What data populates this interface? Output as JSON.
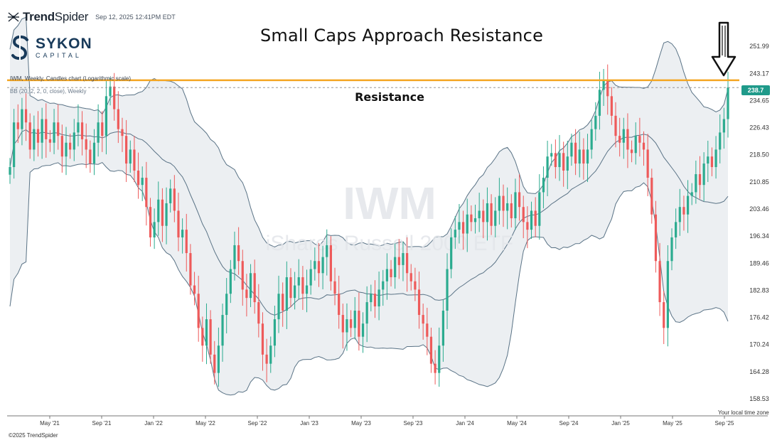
{
  "header": {
    "brand_name_bold": "Trend",
    "brand_name_light": "Spider",
    "timestamp": "Sep 12, 2025 12:41PM EDT",
    "sykon_name": "SYKON",
    "sykon_sub": "CAPITAL"
  },
  "chart_info": {
    "symbol_line": "IWM, Weekly, Candles chart (Logarithmic scale)",
    "bb_line": "BB (20, 2, 2, 0, close), Weekly",
    "footer": "©2025 TrendSpider",
    "tz_label": "Your local time zone"
  },
  "colors": {
    "up": "#2bab8f",
    "down": "#ee5a5a",
    "band_fill": "#eceff2",
    "band_line": "#5a7386",
    "resistance": "#f4a623"
  },
  "chart_data": {
    "type": "candlestick",
    "title": "Small Caps Approach Resistance",
    "watermark_symbol": "IWM",
    "watermark_name": "iShares Russell 2000 ETF",
    "log_scale": true,
    "ylim": [
      155,
      258
    ],
    "yticks": [
      251.99,
      243.17,
      234.65,
      226.43,
      218.5,
      210.85,
      203.46,
      196.34,
      189.46,
      182.83,
      176.42,
      170.24,
      164.28,
      158.53
    ],
    "xticks": [
      "May '21",
      "Sep '21",
      "Jan '22",
      "May '22",
      "Sep '22",
      "Jan '23",
      "May '23",
      "Sep '23",
      "Jan '24",
      "May '24",
      "Sep '24",
      "Jan '25",
      "May '25",
      "Sep '25"
    ],
    "last_price": 238.7,
    "resistance": {
      "value": 241,
      "label": "Resistance"
    },
    "weekly_closes": [
      215,
      228,
      226,
      232,
      228,
      220,
      226,
      222,
      229,
      223,
      222,
      228,
      224,
      218,
      222,
      220,
      225,
      228,
      223,
      220,
      216,
      222,
      228,
      224,
      236,
      239,
      232,
      226,
      224,
      216,
      220,
      214,
      210,
      212,
      204,
      196,
      200,
      206,
      199,
      205,
      209,
      203,
      196,
      198,
      192,
      184,
      182,
      174,
      170,
      176,
      168,
      164,
      170,
      177,
      182,
      188,
      194,
      190,
      183,
      181,
      187,
      180,
      175,
      168,
      166,
      170,
      176,
      182,
      178,
      186,
      181,
      184,
      186,
      182,
      184,
      188,
      190,
      187,
      191,
      194,
      185,
      182,
      177,
      173,
      176,
      174,
      178,
      172,
      175,
      180,
      182,
      179,
      183,
      185,
      188,
      186,
      191,
      189,
      192,
      187,
      185,
      183,
      177,
      175,
      172,
      166,
      164,
      170,
      178,
      188,
      196,
      198,
      200,
      197,
      202,
      200,
      201,
      203,
      200,
      205,
      199,
      203,
      207,
      203,
      205,
      201,
      208,
      204,
      200,
      198,
      203,
      199,
      208,
      212,
      218,
      219,
      215,
      219,
      214,
      218,
      222,
      216,
      220,
      216,
      220,
      226,
      230,
      238,
      241,
      236,
      230,
      224,
      222,
      226,
      220,
      219,
      224,
      222,
      220,
      212,
      202,
      190,
      180,
      174,
      190,
      196,
      200,
      204,
      202,
      207,
      208,
      213,
      210,
      216,
      218,
      215,
      220,
      225,
      229,
      238.7
    ]
  }
}
